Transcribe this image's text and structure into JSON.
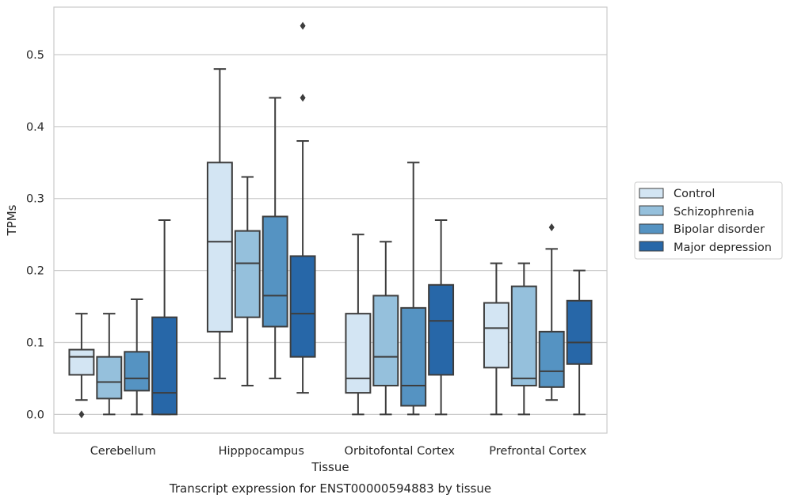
{
  "chart_data": {
    "type": "box",
    "ylabel": "TPMs",
    "xlabel": "Tissue",
    "caption": "Transcript expression for ENST00000594883 by tissue",
    "ylim": [
      -0.026,
      0.566
    ],
    "yticks": [
      0.0,
      0.1,
      0.2,
      0.3,
      0.4,
      0.5
    ],
    "ytick_labels": [
      "0.0",
      "0.1",
      "0.2",
      "0.3",
      "0.4",
      "0.5"
    ],
    "grid": "horizontal",
    "legend_position": "right",
    "categories": [
      "Cerebellum",
      "Hipppocampus",
      "Orbitofontal Cortex",
      "Prefrontal Cortex"
    ],
    "series": [
      {
        "name": "Control",
        "color": "#d3e5f3",
        "boxes": [
          {
            "whislo": 0.02,
            "q1": 0.055,
            "med": 0.08,
            "q3": 0.09,
            "whishi": 0.14,
            "fliers": [
              0.0
            ]
          },
          {
            "whislo": 0.05,
            "q1": 0.115,
            "med": 0.24,
            "q3": 0.35,
            "whishi": 0.48,
            "fliers": []
          },
          {
            "whislo": 0.0,
            "q1": 0.03,
            "med": 0.05,
            "q3": 0.14,
            "whishi": 0.25,
            "fliers": []
          },
          {
            "whislo": 0.0,
            "q1": 0.065,
            "med": 0.12,
            "q3": 0.155,
            "whishi": 0.21,
            "fliers": []
          }
        ]
      },
      {
        "name": "Schizophrenia",
        "color": "#95c0dc",
        "boxes": [
          {
            "whislo": 0.0,
            "q1": 0.022,
            "med": 0.045,
            "q3": 0.08,
            "whishi": 0.14,
            "fliers": []
          },
          {
            "whislo": 0.04,
            "q1": 0.135,
            "med": 0.21,
            "q3": 0.255,
            "whishi": 0.33,
            "fliers": []
          },
          {
            "whislo": 0.0,
            "q1": 0.04,
            "med": 0.08,
            "q3": 0.165,
            "whishi": 0.24,
            "fliers": []
          },
          {
            "whislo": 0.0,
            "q1": 0.04,
            "med": 0.05,
            "q3": 0.178,
            "whishi": 0.21,
            "fliers": []
          }
        ]
      },
      {
        "name": "Bipolar disorder",
        "color": "#5593c2",
        "boxes": [
          {
            "whislo": 0.0,
            "q1": 0.033,
            "med": 0.05,
            "q3": 0.087,
            "whishi": 0.16,
            "fliers": []
          },
          {
            "whislo": 0.05,
            "q1": 0.122,
            "med": 0.165,
            "q3": 0.275,
            "whishi": 0.44,
            "fliers": []
          },
          {
            "whislo": 0.0,
            "q1": 0.012,
            "med": 0.04,
            "q3": 0.148,
            "whishi": 0.35,
            "fliers": []
          },
          {
            "whislo": 0.02,
            "q1": 0.038,
            "med": 0.06,
            "q3": 0.115,
            "whishi": 0.23,
            "fliers": [
              0.26
            ]
          }
        ]
      },
      {
        "name": "Major depression",
        "color": "#2767a8",
        "boxes": [
          {
            "whislo": 0.0,
            "q1": 0.0,
            "med": 0.03,
            "q3": 0.135,
            "whishi": 0.27,
            "fliers": []
          },
          {
            "whislo": 0.03,
            "q1": 0.08,
            "med": 0.14,
            "q3": 0.22,
            "whishi": 0.38,
            "fliers": [
              0.44,
              0.54
            ]
          },
          {
            "whislo": 0.0,
            "q1": 0.055,
            "med": 0.13,
            "q3": 0.18,
            "whishi": 0.27,
            "fliers": []
          },
          {
            "whislo": 0.0,
            "q1": 0.07,
            "med": 0.1,
            "q3": 0.158,
            "whishi": 0.2,
            "fliers": []
          }
        ]
      }
    ]
  },
  "colors": {
    "grid": "#cccccc",
    "axes_frame": "#cccccc",
    "box_edge": "#3d3d3d",
    "text": "#262626"
  }
}
